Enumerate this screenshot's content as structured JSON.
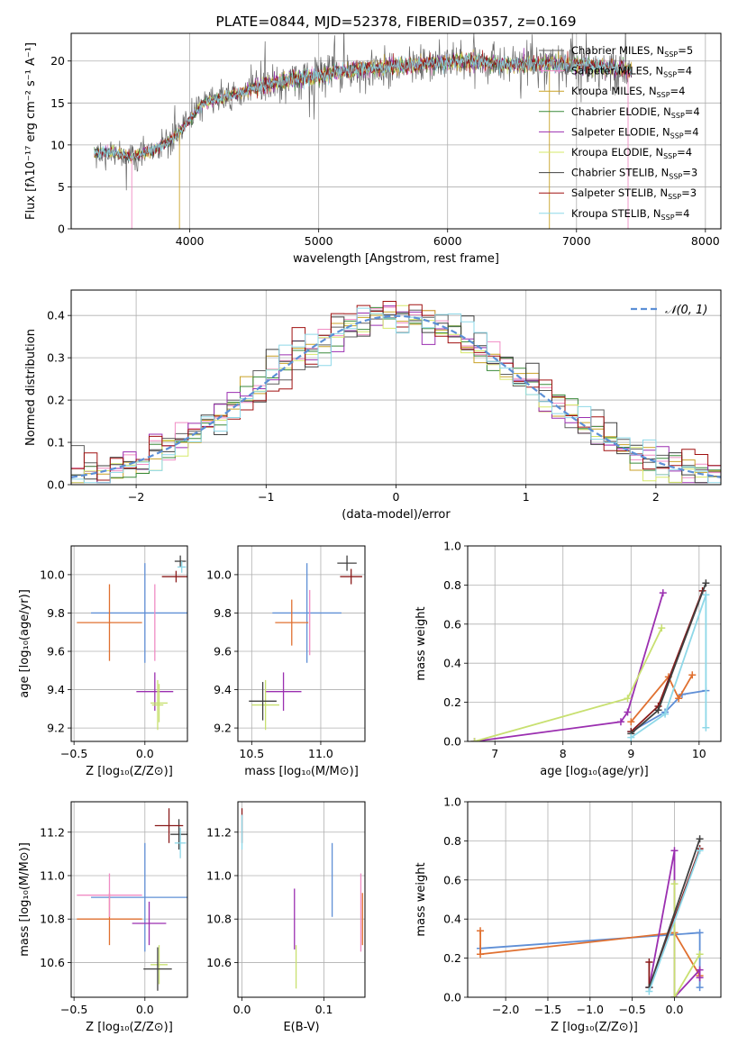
{
  "colors": {
    "grid": "#b0b0b0",
    "axis": "#000000",
    "gauss": "#5b8fd6",
    "series": [
      "#5f5f5f",
      "#f08cc4",
      "#c9a227",
      "#3a8a3a",
      "#9b2fb0",
      "#d6e86a",
      "#404040",
      "#a01010",
      "#8ed8e8"
    ],
    "ssp_lines": [
      "#5f8fd6",
      "#e07030",
      "#9b2fb0",
      "#c8e070",
      "#8a1a1a",
      "#404040",
      "#8ed8e8",
      "#f08cc4",
      "#3a8a3a"
    ]
  },
  "chart_data": [
    {
      "id": "spectrum",
      "type": "line",
      "title": "PLATE=0844, MJD=52378, FIBERID=0357, z=0.169",
      "xlabel": "wavelength [Angstrom, rest frame]",
      "ylabel": "Flux [fλ10⁻¹⁷ erg cm⁻² s⁻¹ A⁻¹]",
      "xlim": [
        3080,
        8120
      ],
      "ylim": [
        0,
        23.3
      ],
      "xticks": [
        4000,
        5000,
        6000,
        7000,
        8000
      ],
      "yticks": [
        0,
        5,
        10,
        15,
        20
      ],
      "grid": true,
      "legend_position": "right",
      "anchors": {
        "x": [
          3260,
          3400,
          3550,
          3700,
          3850,
          3950,
          4100,
          4300,
          4500,
          4700,
          4900,
          5100,
          5300,
          5500,
          5700,
          5900,
          6100,
          6300,
          6500,
          6700,
          6900,
          7100,
          7300,
          7430
        ],
        "y": [
          9.0,
          9.2,
          8.5,
          9.3,
          10.5,
          12.0,
          15.0,
          15.8,
          16.8,
          17.5,
          18.0,
          18.5,
          19.0,
          19.2,
          19.5,
          19.8,
          20.0,
          19.8,
          19.5,
          19.8,
          19.6,
          19.4,
          19.2,
          18.8
        ]
      },
      "legend": [
        {
          "label": "Chabrier MILES, N",
          "sub": "SSP",
          "n": "=5"
        },
        {
          "label": "Salpeter MILES, N",
          "sub": "SSP",
          "n": "=4"
        },
        {
          "label": "Kroupa MILES, N",
          "sub": "SSP",
          "n": "=4"
        },
        {
          "label": "Chabrier ELODIE, N",
          "sub": "SSP",
          "n": "=4"
        },
        {
          "label": "Salpeter ELODIE, N",
          "sub": "SSP",
          "n": "=4"
        },
        {
          "label": "Kroupa ELODIE, N",
          "sub": "SSP",
          "n": "=4"
        },
        {
          "label": "Chabrier STELIB, N",
          "sub": "SSP",
          "n": "=3"
        },
        {
          "label": "Salpeter STELIB, N",
          "sub": "SSP",
          "n": "=3"
        },
        {
          "label": "Kroupa STELIB, N",
          "sub": "SSP",
          "n": "=4"
        }
      ],
      "drops": [
        {
          "x": 3550,
          "to": 0.0,
          "series": 1
        },
        {
          "x": 3920,
          "to": 0.0,
          "series": 2
        },
        {
          "x": 6790,
          "to": 0.0,
          "series": 2
        },
        {
          "x": 7400,
          "to": 0.0,
          "series": 1
        }
      ]
    },
    {
      "id": "residuals",
      "type": "line",
      "xlabel": "(data-model)/error",
      "ylabel": "Normed distribution",
      "xlim": [
        -2.5,
        2.5
      ],
      "ylim": [
        0,
        0.46
      ],
      "xticks": [
        -2,
        -1,
        0,
        1,
        2
      ],
      "yticks": [
        0.0,
        0.1,
        0.2,
        0.3,
        0.4
      ],
      "grid": true,
      "legend_position": "top-right",
      "legend": [
        {
          "label": "𝒩(0, 1)"
        }
      ],
      "bin_width": 0.1
    },
    {
      "id": "age_vs_Z",
      "type": "scatter",
      "xlabel": "Z [log₁₀(Z/Z⊙)]",
      "ylabel": "age  [log₁₀(age/yr)]",
      "xlim": [
        -0.52,
        0.3
      ],
      "ylim": [
        9.13,
        10.15
      ],
      "xticks": [
        -0.5,
        0.0
      ],
      "yticks": [
        9.2,
        9.4,
        9.6,
        9.8,
        10.0
      ],
      "grid": true,
      "points": [
        {
          "x": 0.0,
          "y": 9.8,
          "xerr": 0.38,
          "yerr": 0.26,
          "c": 0
        },
        {
          "x": -0.25,
          "y": 9.75,
          "xerr": 0.23,
          "yerr": 0.2,
          "c": 1
        },
        {
          "x": 0.07,
          "y": 9.39,
          "xerr": 0.13,
          "yerr": 0.1,
          "c": 2
        },
        {
          "x": 0.1,
          "y": 9.33,
          "xerr": 0.06,
          "yerr": 0.1,
          "c": 3
        },
        {
          "x": 0.09,
          "y": 9.32,
          "xerr": 0.04,
          "yerr": 0.13,
          "c": 3
        },
        {
          "x": 0.25,
          "y": 10.07,
          "xerr": 0.04,
          "yerr": 0.03,
          "c": 5
        },
        {
          "x": 0.26,
          "y": 10.04,
          "xerr": 0.03,
          "yerr": 0.03,
          "c": 6
        },
        {
          "x": 0.22,
          "y": 9.99,
          "xerr": 0.1,
          "yerr": 0.03,
          "c": 4
        },
        {
          "x": 0.07,
          "y": 9.75,
          "xerr": 0.0,
          "yerr": 0.2,
          "c": 7
        }
      ]
    },
    {
      "id": "age_vs_mass",
      "type": "scatter",
      "xlabel": "mass [log₁₀(M/M⊙)]",
      "ylabel": "",
      "xlim": [
        10.4,
        11.32
      ],
      "ylim": [
        9.13,
        10.15
      ],
      "xticks": [
        10.5,
        11.0
      ],
      "yticks": [
        9.2,
        9.4,
        9.6,
        9.8,
        10.0
      ],
      "grid": true,
      "points": [
        {
          "x": 10.9,
          "y": 9.8,
          "xerr": 0.25,
          "yerr": 0.26,
          "c": 0
        },
        {
          "x": 10.79,
          "y": 9.75,
          "xerr": 0.12,
          "yerr": 0.12,
          "c": 1
        },
        {
          "x": 10.73,
          "y": 9.39,
          "xerr": 0.13,
          "yerr": 0.1,
          "c": 2
        },
        {
          "x": 10.6,
          "y": 9.32,
          "xerr": 0.1,
          "yerr": 0.13,
          "c": 3
        },
        {
          "x": 10.58,
          "y": 9.34,
          "xerr": 0.1,
          "yerr": 0.1,
          "c": 5
        },
        {
          "x": 11.19,
          "y": 10.06,
          "xerr": 0.07,
          "yerr": 0.04,
          "c": 5
        },
        {
          "x": 11.22,
          "y": 9.99,
          "xerr": 0.08,
          "yerr": 0.04,
          "c": 4
        },
        {
          "x": 10.92,
          "y": 9.75,
          "xerr": 0.0,
          "yerr": 0.17,
          "c": 7
        }
      ]
    },
    {
      "id": "weight_vs_age",
      "type": "line",
      "xlabel": "age  [log₁₀(age/yr)]",
      "ylabel": "mass weight",
      "xlim": [
        6.6,
        10.32
      ],
      "ylim": [
        0,
        1.0
      ],
      "xticks": [
        7,
        8,
        9,
        10
      ],
      "yticks": [
        0.0,
        0.2,
        0.4,
        0.6,
        0.8,
        1.0
      ],
      "grid": true,
      "series": [
        {
          "c": 0,
          "x": [
            9.0,
            9.5,
            9.75,
            10.1
          ],
          "y": [
            0.05,
            0.15,
            0.24,
            0.26
          ]
        },
        {
          "c": 1,
          "x": [
            9.0,
            9.55,
            9.7,
            9.9
          ],
          "y": [
            0.1,
            0.33,
            0.22,
            0.34
          ]
        },
        {
          "c": 2,
          "x": [
            6.7,
            8.85,
            8.95,
            9.47
          ],
          "y": [
            0.0,
            0.1,
            0.15,
            0.76
          ]
        },
        {
          "c": 3,
          "x": [
            6.7,
            8.95,
            9.45
          ],
          "y": [
            0.0,
            0.22,
            0.58
          ]
        },
        {
          "c": 4,
          "x": [
            9.0,
            9.4,
            10.05
          ],
          "y": [
            0.05,
            0.18,
            0.77
          ]
        },
        {
          "c": 5,
          "x": [
            9.0,
            9.4,
            10.1
          ],
          "y": [
            0.04,
            0.16,
            0.81
          ]
        },
        {
          "c": 6,
          "x": [
            9.0,
            9.5,
            10.1,
            10.1
          ],
          "y": [
            0.02,
            0.14,
            0.75,
            0.07
          ]
        }
      ]
    },
    {
      "id": "mass_vs_Z",
      "type": "scatter",
      "xlabel": "Z [log₁₀(Z/Z⊙)]",
      "ylabel": "mass [log₁₀(M/M⊙)]",
      "xlim": [
        -0.52,
        0.3
      ],
      "ylim": [
        10.44,
        11.34
      ],
      "xticks": [
        -0.5,
        0.0
      ],
      "yticks": [
        10.6,
        10.8,
        11.0,
        11.2
      ],
      "grid": true,
      "points": [
        {
          "x": 0.0,
          "y": 10.9,
          "xerr": 0.38,
          "yerr": 0.25,
          "c": 0
        },
        {
          "x": -0.25,
          "y": 10.8,
          "xerr": 0.23,
          "yerr": 0.12,
          "c": 1
        },
        {
          "x": -0.25,
          "y": 10.91,
          "xerr": 0.23,
          "yerr": 0.1,
          "c": 7
        },
        {
          "x": 0.03,
          "y": 10.78,
          "xerr": 0.12,
          "yerr": 0.1,
          "c": 2
        },
        {
          "x": 0.1,
          "y": 10.59,
          "xerr": 0.06,
          "yerr": 0.09,
          "c": 3
        },
        {
          "x": 0.09,
          "y": 10.57,
          "xerr": 0.1,
          "yerr": 0.1,
          "c": 5
        },
        {
          "x": 0.24,
          "y": 11.19,
          "xerr": 0.06,
          "yerr": 0.07,
          "c": 5
        },
        {
          "x": 0.25,
          "y": 11.15,
          "xerr": 0.04,
          "yerr": 0.07,
          "c": 6
        },
        {
          "x": 0.17,
          "y": 11.23,
          "xerr": 0.1,
          "yerr": 0.08,
          "c": 4
        }
      ]
    },
    {
      "id": "mass_vs_ebv",
      "type": "scatter",
      "xlabel": "E(B-V)",
      "ylabel": "",
      "xlim": [
        -0.005,
        0.15
      ],
      "ylim": [
        10.44,
        11.34
      ],
      "xticks": [
        0.0,
        0.1
      ],
      "yticks": [
        10.6,
        10.8,
        11.0,
        11.2
      ],
      "grid": true,
      "points": [
        {
          "x": 0.0,
          "y": 11.23,
          "xerr": 0.0,
          "yerr": 0.08,
          "c": 4
        },
        {
          "x": 0.0,
          "y": 11.2,
          "xerr": 0.0,
          "yerr": 0.08,
          "c": 6
        },
        {
          "x": 0.11,
          "y": 10.98,
          "xerr": 0.0,
          "yerr": 0.17,
          "c": 0
        },
        {
          "x": 0.145,
          "y": 10.83,
          "xerr": 0.0,
          "yerr": 0.18,
          "c": 7
        },
        {
          "x": 0.147,
          "y": 10.8,
          "xerr": 0.0,
          "yerr": 0.12,
          "c": 1
        },
        {
          "x": 0.064,
          "y": 10.8,
          "xerr": 0.0,
          "yerr": 0.14,
          "c": 2
        },
        {
          "x": 0.066,
          "y": 10.58,
          "xerr": 0.0,
          "yerr": 0.1,
          "c": 3
        }
      ]
    },
    {
      "id": "weight_vs_Z",
      "type": "line",
      "xlabel": "Z [log₁₀(Z/Z⊙)]",
      "ylabel": "mass weight",
      "xlim": [
        -2.45,
        0.55
      ],
      "ylim": [
        0,
        1.0
      ],
      "xticks": [
        -2.0,
        -1.5,
        -1.0,
        -0.5,
        0.0
      ],
      "yticks": [
        0.0,
        0.2,
        0.4,
        0.6,
        0.8,
        1.0
      ],
      "grid": true,
      "series": [
        {
          "c": 0,
          "x": [
            -2.3,
            0.3,
            0.3
          ],
          "y": [
            0.25,
            0.33,
            0.05
          ]
        },
        {
          "c": 1,
          "x": [
            -2.3,
            -2.3,
            0.0,
            0.3
          ],
          "y": [
            0.34,
            0.22,
            0.33,
            0.11
          ]
        },
        {
          "c": 2,
          "x": [
            -0.3,
            0.0,
            0.0,
            0.3,
            0.3
          ],
          "y": [
            0.05,
            0.75,
            0.0,
            0.14,
            0.1
          ]
        },
        {
          "c": 3,
          "x": [
            0.0,
            0.0,
            0.3
          ],
          "y": [
            0.58,
            0.0,
            0.22
          ]
        },
        {
          "c": 4,
          "x": [
            -0.3,
            -0.3,
            0.3
          ],
          "y": [
            0.18,
            0.05,
            0.76
          ]
        },
        {
          "c": 5,
          "x": [
            -0.3,
            0.3
          ],
          "y": [
            0.05,
            0.81
          ]
        },
        {
          "c": 6,
          "x": [
            -0.3,
            0.3
          ],
          "y": [
            0.03,
            0.75
          ]
        }
      ]
    }
  ]
}
